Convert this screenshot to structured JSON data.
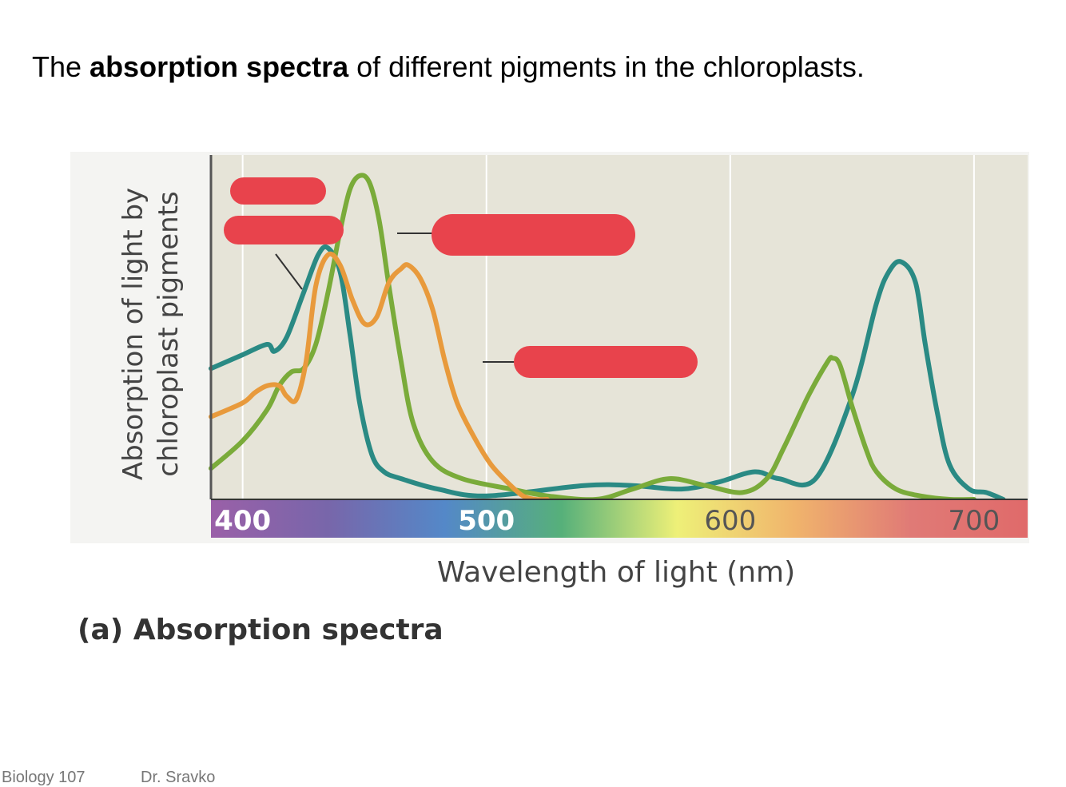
{
  "slide": {
    "title_prefix": "The ",
    "title_bold": "absorption spectra",
    "title_suffix": " of different pigments in the chloroplasts.",
    "footer_course": "Biology 107",
    "footer_author": "Dr. Sravko"
  },
  "chart_data": {
    "type": "line",
    "caption": "(a) Absorption spectra",
    "xlabel": "Wavelength of light (nm)",
    "ylabel_line1": "Absorption of light by",
    "ylabel_line2": "chloroplast pigments",
    "xlim": [
      387,
      722
    ],
    "ylim": [
      0,
      100
    ],
    "x_ticks": [
      "400",
      "500",
      "600",
      "700"
    ],
    "x_tick_values": [
      400,
      500,
      600,
      700
    ],
    "grid": "vertical",
    "legend": "none (labels redacted)",
    "colors": {
      "plot_background": "#e6e4d8",
      "teal_series": "#2a8a84",
      "green_series": "#7aab3a",
      "orange_series": "#e89a3c",
      "redaction": "#e8434c",
      "spectrum": [
        "#9a60a8",
        "#7866aa",
        "#5488c8",
        "#56b07a",
        "#eef078",
        "#f0b46c",
        "#e07a76",
        "#e06a6a"
      ]
    },
    "series": [
      {
        "color": "#2a8a84",
        "x": [
          387,
          400,
          410,
          413,
          418,
          425,
          431,
          435,
          440,
          444,
          448,
          453,
          458,
          465,
          480,
          500,
          540,
          560,
          580,
          595,
          610,
          620,
          635,
          650,
          660,
          665,
          670,
          676,
          680,
          685,
          690,
          698,
          705,
          712
        ],
        "y": [
          38,
          42,
          45,
          43,
          47,
          60,
          71,
          73,
          66,
          48,
          28,
          13,
          8,
          6,
          3,
          1,
          4,
          4,
          3,
          5,
          8,
          6,
          6,
          30,
          57,
          66,
          69,
          63,
          45,
          25,
          10,
          3,
          2,
          0
        ]
      },
      {
        "color": "#7aab3a",
        "x": [
          387,
          400,
          410,
          415,
          420,
          425,
          430,
          435,
          440,
          444,
          448,
          452,
          456,
          460,
          465,
          470,
          478,
          490,
          510,
          525,
          545,
          560,
          575,
          590,
          605,
          615,
          622,
          632,
          640,
          642,
          645,
          650,
          656,
          660,
          668,
          678,
          690,
          700
        ],
        "y": [
          9,
          17,
          26,
          33,
          37,
          38,
          45,
          60,
          78,
          90,
          94,
          92,
          81,
          62,
          40,
          22,
          11,
          6,
          3,
          1,
          0,
          3,
          6,
          4,
          2,
          6,
          15,
          30,
          40,
          41,
          39,
          27,
          14,
          8,
          3,
          1,
          0,
          0
        ]
      },
      {
        "color": "#e89a3c",
        "x": [
          387,
          400,
          405,
          410,
          415,
          418,
          422,
          426,
          430,
          435,
          440,
          445,
          450,
          455,
          460,
          465,
          468,
          473,
          478,
          483,
          488,
          495,
          502,
          510,
          515,
          520,
          525
        ],
        "y": [
          24,
          28,
          31,
          33,
          33,
          30,
          29,
          40,
          62,
          71,
          68,
          58,
          51,
          53,
          63,
          67,
          68,
          64,
          55,
          40,
          28,
          18,
          10,
          4,
          1,
          0,
          0
        ]
      }
    ]
  }
}
